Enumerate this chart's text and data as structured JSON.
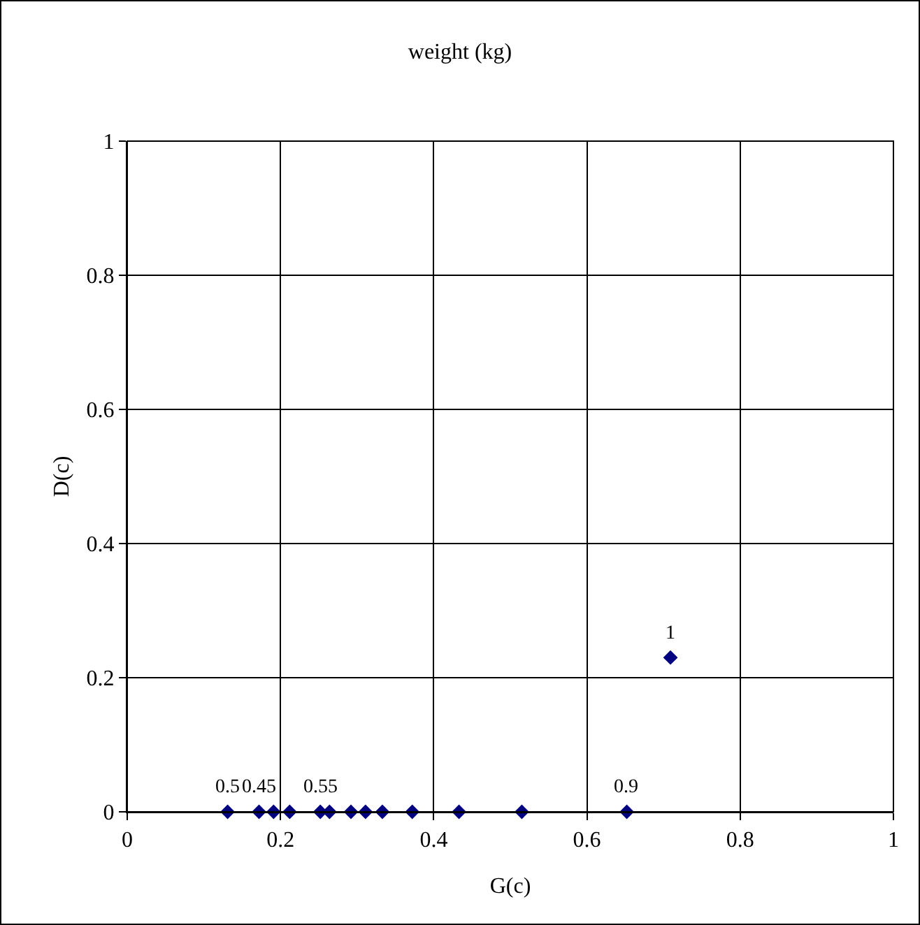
{
  "chart_data": {
    "type": "scatter",
    "title": "weight (kg)",
    "xlabel": "G(c)",
    "ylabel": "D(c)",
    "x": [
      0.131,
      0.172,
      0.191,
      0.212,
      0.252,
      0.264,
      0.292,
      0.311,
      0.333,
      0.372,
      0.433,
      0.515,
      0.652,
      0.709
    ],
    "values": [
      0,
      0,
      0,
      0,
      0,
      0,
      0,
      0,
      0,
      0,
      0,
      0,
      0,
      0.23
    ],
    "annotations": [
      {
        "text": "0.5",
        "x": 0.131,
        "y": 0
      },
      {
        "text": "0.45",
        "x": 0.172,
        "y": 0
      },
      {
        "text": "0.55",
        "x": 0.252,
        "y": 0
      },
      {
        "text": "0.9",
        "x": 0.652,
        "y": 0
      },
      {
        "text": "1",
        "x": 0.709,
        "y": 0.23
      }
    ],
    "color": "#000080",
    "marker": "diamond",
    "xlim": [
      0,
      1
    ],
    "xticks": [
      0,
      0.2,
      0.4,
      0.6,
      0.8,
      1
    ],
    "ylim": [
      0,
      1
    ],
    "yticks": [
      0,
      0.2,
      0.4,
      0.6,
      0.8,
      1
    ],
    "grid": true
  }
}
